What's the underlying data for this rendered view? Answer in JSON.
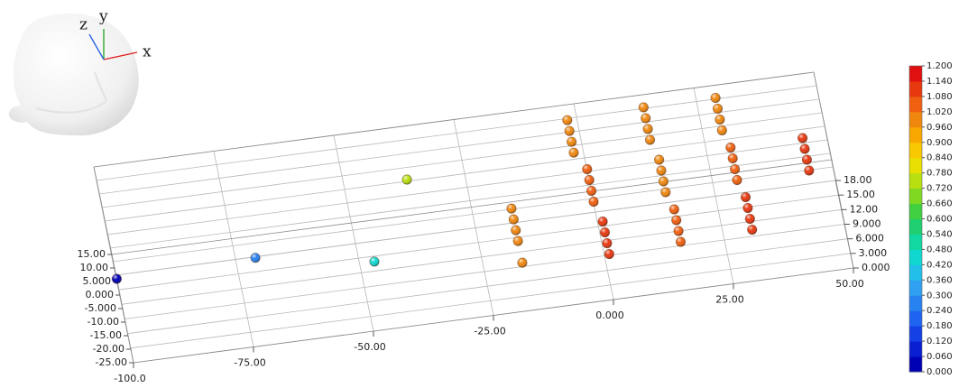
{
  "chart_data": {
    "type": "scatter3d",
    "orientation_axes": {
      "x": "x",
      "y": "y",
      "z": "z"
    },
    "xlim": [
      -100,
      50
    ],
    "ylim": [
      -25,
      15
    ],
    "zlim": [
      0,
      18
    ],
    "xticks": [
      {
        "value": -100,
        "label": "-100.0"
      },
      {
        "value": -75,
        "label": "-75.00"
      },
      {
        "value": -50,
        "label": "-50.00"
      },
      {
        "value": -25,
        "label": "-25.00"
      },
      {
        "value": 0,
        "label": "0.000"
      },
      {
        "value": 25,
        "label": "25.00"
      },
      {
        "value": 50,
        "label": "50.00"
      }
    ],
    "yticks": [
      {
        "value": -25,
        "label": "-25.00"
      },
      {
        "value": -20,
        "label": "-20.00"
      },
      {
        "value": -15,
        "label": "-15.00"
      },
      {
        "value": -10,
        "label": "-10.00"
      },
      {
        "value": -5,
        "label": "-5.000"
      },
      {
        "value": 0,
        "label": "0.000"
      },
      {
        "value": 5,
        "label": "5.000"
      },
      {
        "value": 10,
        "label": "10.00"
      },
      {
        "value": 15,
        "label": "15.00"
      }
    ],
    "zticks": [
      {
        "value": 0,
        "label": "0.000"
      },
      {
        "value": 3,
        "label": "3.000"
      },
      {
        "value": 6,
        "label": "6.000"
      },
      {
        "value": 9,
        "label": "9.000"
      },
      {
        "value": 12,
        "label": "12.00"
      },
      {
        "value": 15,
        "label": "15.00"
      },
      {
        "value": 18,
        "label": "18.00"
      }
    ],
    "grid": true,
    "clim": [
      0,
      1.2
    ],
    "colorbar_ticks": [
      {
        "value": 0,
        "label": "0.000"
      },
      {
        "value": 0.06,
        "label": "0.060"
      },
      {
        "value": 0.12,
        "label": "0.120"
      },
      {
        "value": 0.18,
        "label": "0.180"
      },
      {
        "value": 0.24,
        "label": "0.240"
      },
      {
        "value": 0.3,
        "label": "0.300"
      },
      {
        "value": 0.36,
        "label": "0.360"
      },
      {
        "value": 0.42,
        "label": "0.420"
      },
      {
        "value": 0.48,
        "label": "0.480"
      },
      {
        "value": 0.54,
        "label": "0.540"
      },
      {
        "value": 0.6,
        "label": "0.600"
      },
      {
        "value": 0.66,
        "label": "0.660"
      },
      {
        "value": 0.72,
        "label": "0.720"
      },
      {
        "value": 0.78,
        "label": "0.780"
      },
      {
        "value": 0.84,
        "label": "0.840"
      },
      {
        "value": 0.9,
        "label": "0.900"
      },
      {
        "value": 0.96,
        "label": "0.960"
      },
      {
        "value": 1.02,
        "label": "1.020"
      },
      {
        "value": 1.08,
        "label": "1.080"
      },
      {
        "value": 1.14,
        "label": "1.140"
      },
      {
        "value": 1.2,
        "label": "1.200"
      }
    ],
    "colormap": [
      "#0000b4",
      "#0a1ed2",
      "#1440e6",
      "#1e64f0",
      "#2882f0",
      "#30a0f0",
      "#20c0e8",
      "#10d8d0",
      "#10d8a0",
      "#20d070",
      "#40d040",
      "#80d820",
      "#b8e010",
      "#e8e000",
      "#f8c800",
      "#f8a800",
      "#f08810",
      "#f06010",
      "#e83810",
      "#e01010"
    ],
    "x": [
      -100,
      -71,
      -47,
      -37,
      -17,
      -17,
      -17,
      -17,
      -17,
      -2,
      -2,
      -2,
      -2,
      0,
      0,
      0,
      0,
      1,
      1,
      1,
      1,
      14,
      14,
      14,
      14,
      15,
      15,
      15,
      15,
      16,
      16,
      16,
      16,
      29,
      29,
      29,
      29,
      30,
      30,
      30,
      30,
      31,
      31,
      31,
      31,
      45,
      45,
      45,
      45
    ],
    "y": [
      6,
      7,
      0,
      10,
      -11,
      -3,
      1,
      5,
      9,
      1,
      5,
      9,
      13,
      -5,
      -1,
      3,
      7,
      -12,
      -8,
      -4,
      0,
      2,
      6,
      10,
      14,
      -5,
      -1,
      3,
      7,
      -11,
      -7,
      -3,
      1,
      2,
      6,
      10,
      14,
      -4,
      0,
      4,
      8,
      -10,
      -6,
      -2,
      2,
      -4,
      0,
      4,
      8
    ],
    "z": [
      0,
      0,
      0,
      10,
      2,
      2,
      2,
      2,
      2,
      16,
      16,
      16,
      16,
      9,
      9,
      9,
      9,
      2,
      2,
      2,
      2,
      16,
      16,
      16,
      16,
      9,
      9,
      9,
      9,
      2,
      2,
      2,
      2,
      16,
      16,
      16,
      16,
      9,
      9,
      9,
      9,
      2,
      2,
      2,
      2,
      9,
      9,
      9,
      9
    ],
    "values": [
      0.03,
      0.25,
      0.46,
      0.76,
      0.97,
      0.96,
      0.96,
      0.97,
      0.97,
      1.0,
      1.0,
      1.0,
      1.0,
      1.02,
      1.02,
      1.02,
      1.02,
      1.08,
      1.08,
      1.08,
      1.08,
      0.98,
      0.98,
      0.98,
      0.98,
      1.0,
      1.0,
      1.0,
      1.0,
      1.06,
      1.06,
      1.06,
      1.06,
      0.97,
      0.97,
      0.97,
      0.97,
      1.06,
      1.06,
      1.06,
      1.06,
      1.1,
      1.1,
      1.1,
      1.1,
      1.13,
      1.13,
      1.13,
      1.13
    ]
  }
}
